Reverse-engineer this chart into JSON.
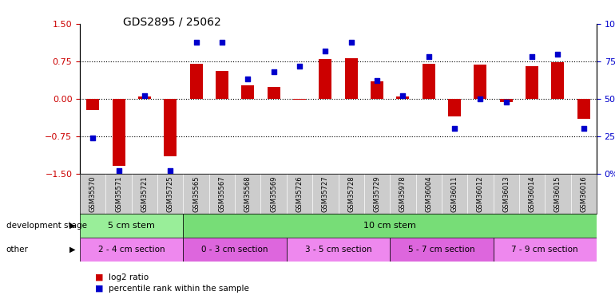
{
  "title": "GDS2895 / 25062",
  "samples": [
    "GSM35570",
    "GSM35571",
    "GSM35721",
    "GSM35725",
    "GSM35565",
    "GSM35567",
    "GSM35568",
    "GSM35569",
    "GSM35726",
    "GSM35727",
    "GSM35728",
    "GSM35729",
    "GSM35978",
    "GSM36004",
    "GSM36011",
    "GSM36012",
    "GSM36013",
    "GSM36014",
    "GSM36015",
    "GSM36016"
  ],
  "log2_ratio": [
    -0.22,
    -1.35,
    0.05,
    -1.15,
    0.7,
    0.55,
    0.27,
    0.23,
    -0.02,
    0.8,
    0.82,
    0.35,
    0.05,
    0.7,
    -0.35,
    0.68,
    -0.07,
    0.65,
    0.73,
    -0.4
  ],
  "percentile": [
    24,
    2,
    52,
    2,
    88,
    88,
    63,
    68,
    72,
    82,
    88,
    62,
    52,
    78,
    30,
    50,
    48,
    78,
    80,
    30
  ],
  "ylim_left": [
    -1.5,
    1.5
  ],
  "ylim_right": [
    0,
    100
  ],
  "yticks_left": [
    -1.5,
    -0.75,
    0.0,
    0.75,
    1.5
  ],
  "yticks_right": [
    0,
    25,
    50,
    75,
    100
  ],
  "hlines": [
    0.75,
    0.0,
    -0.75
  ],
  "bar_color": "#CC0000",
  "dot_color": "#0000CC",
  "bg_color": "#FFFFFF",
  "tick_area_color": "#CCCCCC",
  "dev_stage_label": "development stage",
  "other_label": "other",
  "dev_stage_groups": [
    {
      "label": "5 cm stem",
      "start": 0,
      "end": 3,
      "color": "#99EE99"
    },
    {
      "label": "10 cm stem",
      "start": 4,
      "end": 19,
      "color": "#77DD77"
    }
  ],
  "other_groups": [
    {
      "label": "2 - 4 cm section",
      "start": 0,
      "end": 3,
      "color": "#EE88EE"
    },
    {
      "label": "0 - 3 cm section",
      "start": 4,
      "end": 7,
      "color": "#DD66DD"
    },
    {
      "label": "3 - 5 cm section",
      "start": 8,
      "end": 11,
      "color": "#EE88EE"
    },
    {
      "label": "5 - 7 cm section",
      "start": 12,
      "end": 15,
      "color": "#DD66DD"
    },
    {
      "label": "7 - 9 cm section",
      "start": 16,
      "end": 19,
      "color": "#EE88EE"
    }
  ],
  "legend_bar_color": "#CC0000",
  "legend_dot_color": "#0000CC",
  "legend_bar_label": "log2 ratio",
  "legend_dot_label": "percentile rank within the sample"
}
